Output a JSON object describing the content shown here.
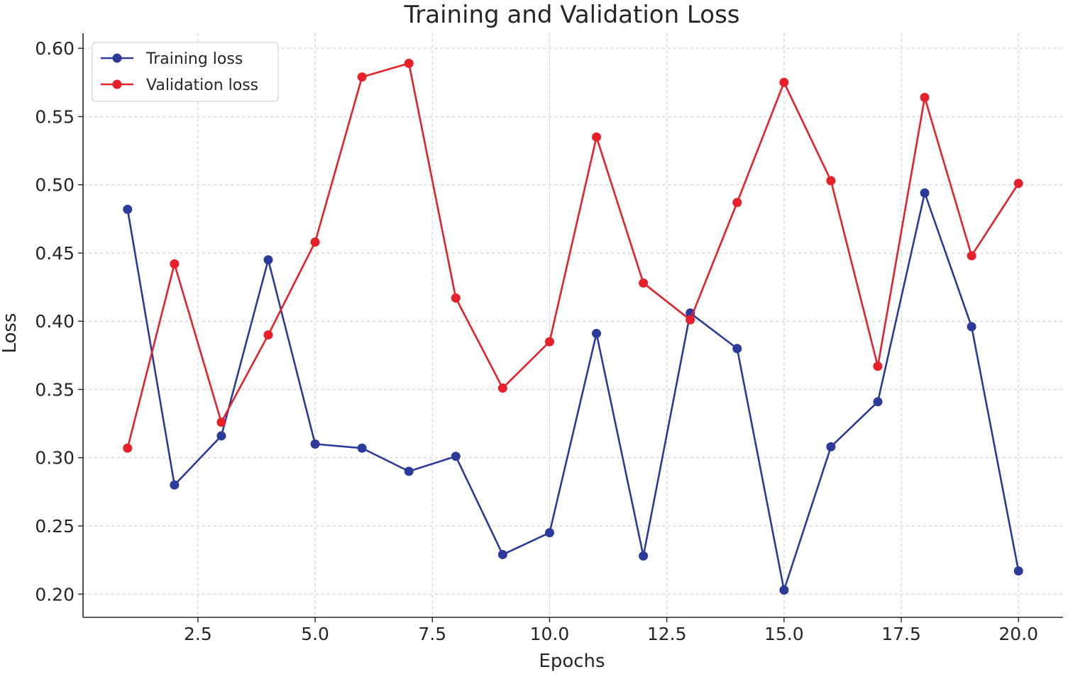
{
  "chart_data": {
    "type": "line",
    "title": "Training and Validation Loss",
    "xlabel": "Epochs",
    "ylabel": "Loss",
    "xlim": [
      0.05,
      20.95
    ],
    "ylim": [
      0.183,
      0.611
    ],
    "grid": true,
    "legend_position": "top-left",
    "x": [
      1,
      2,
      3,
      4,
      5,
      6,
      7,
      8,
      9,
      10,
      11,
      12,
      13,
      14,
      15,
      16,
      17,
      18,
      19,
      20
    ],
    "xticks": [
      2.5,
      5.0,
      7.5,
      10.0,
      12.5,
      15.0,
      17.5,
      20.0
    ],
    "xtick_labels": [
      "2.5",
      "5.0",
      "7.5",
      "10.0",
      "12.5",
      "15.0",
      "17.5",
      "20.0"
    ],
    "yticks": [
      0.2,
      0.25,
      0.3,
      0.35,
      0.4,
      0.45,
      0.5,
      0.55,
      0.6
    ],
    "ytick_labels": [
      "0.20",
      "0.25",
      "0.30",
      "0.35",
      "0.40",
      "0.45",
      "0.50",
      "0.55",
      "0.60"
    ],
    "series": [
      {
        "name": "Training loss",
        "color": "#2b3a9b",
        "values": [
          0.482,
          0.28,
          0.316,
          0.445,
          0.31,
          0.307,
          0.29,
          0.301,
          0.229,
          0.245,
          0.391,
          0.228,
          0.406,
          0.38,
          0.203,
          0.308,
          0.341,
          0.494,
          0.396,
          0.217
        ]
      },
      {
        "name": "Validation loss",
        "color": "#e8202a",
        "values": [
          0.307,
          0.442,
          0.326,
          0.39,
          0.458,
          0.579,
          0.589,
          0.417,
          0.351,
          0.385,
          0.535,
          0.428,
          0.401,
          0.487,
          0.575,
          0.503,
          0.367,
          0.564,
          0.448,
          0.501
        ]
      }
    ]
  }
}
